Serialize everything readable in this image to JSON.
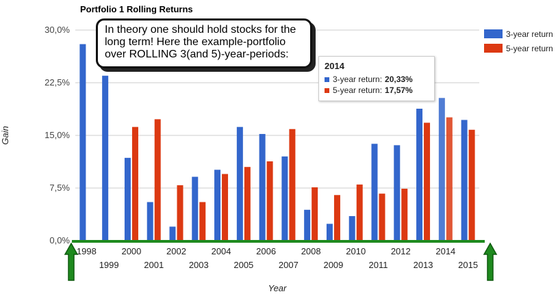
{
  "chart_data": {
    "type": "bar",
    "title": "Portfolio 1 Rolling Returns",
    "xlabel": "Year",
    "ylabel": "Gain",
    "ylim": [
      0,
      30
    ],
    "yticks": [
      "0,0%",
      "7,5%",
      "15,0%",
      "22,5%",
      "30,0%"
    ],
    "ytick_values": [
      0,
      7.5,
      15,
      22.5,
      30
    ],
    "categories": [
      "1998",
      "1999",
      "2000",
      "2001",
      "2002",
      "2003",
      "2004",
      "2005",
      "2006",
      "2007",
      "2008",
      "2009",
      "2010",
      "2011",
      "2012",
      "2013",
      "2014",
      "2015"
    ],
    "series": [
      {
        "name": "3-year return",
        "color": "#3366cc",
        "values": [
          28.0,
          23.5,
          11.8,
          5.5,
          2.0,
          9.1,
          10.1,
          16.2,
          15.2,
          12.0,
          4.4,
          2.4,
          3.5,
          13.8,
          13.6,
          18.8,
          20.33,
          17.2
        ]
      },
      {
        "name": "5-year return",
        "color": "#dc3912",
        "values": [
          null,
          null,
          16.2,
          17.3,
          7.9,
          5.5,
          9.5,
          10.5,
          11.3,
          15.9,
          7.6,
          6.5,
          8.0,
          6.7,
          7.4,
          16.8,
          17.57,
          15.8
        ]
      }
    ],
    "highlight_category": "2014",
    "grid": true,
    "legend_position": "right"
  },
  "callout": {
    "text": "In theory one should hold stocks for the long term! Here the example-portfolio over ROLLING 3(and 5)-year-periods:"
  },
  "tooltip": {
    "title": "2014",
    "rows": [
      {
        "label": "3-year return:",
        "value": "20,33%",
        "color": "#3366cc"
      },
      {
        "label": "5-year return:",
        "value": "17,57%",
        "color": "#dc3912"
      }
    ]
  },
  "colors": {
    "axis_highlight": "#1e8a1e",
    "arrow": "#1e8a1e",
    "grid": "#cccccc"
  }
}
